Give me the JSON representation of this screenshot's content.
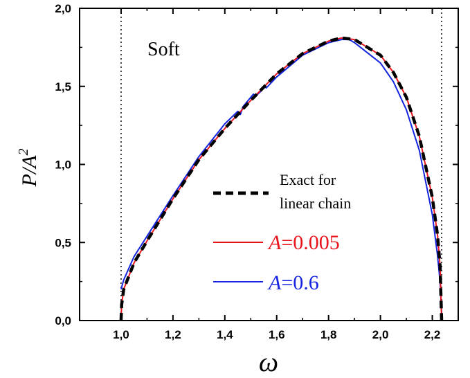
{
  "chart_data": {
    "type": "line",
    "title": "",
    "annotation": "Soft",
    "xlabel": "ω",
    "ylabel": {
      "main": "P/A",
      "superscript": "2"
    },
    "xlim": [
      0.84,
      2.3
    ],
    "ylim": [
      0,
      2.0
    ],
    "x_ticks": [
      1.0,
      1.2,
      1.4,
      1.6,
      1.8,
      2.0,
      2.2
    ],
    "x_tick_labels": [
      "1,0",
      "1,2",
      "1,4",
      "1,6",
      "1,8",
      "2,0",
      "2,2"
    ],
    "y_ticks": [
      0,
      0.5,
      1.0,
      1.5,
      2.0
    ],
    "y_tick_labels": [
      "0,0",
      "0,5",
      "1,0",
      "1,5",
      "2,0"
    ],
    "band_edges": [
      1.0,
      2.236
    ],
    "grid": false,
    "legend_position": "center-right",
    "legend_entries": [
      {
        "key": "exact",
        "label_lines": [
          "Exact for",
          "linear chain"
        ]
      },
      {
        "key": "a005",
        "label_prefix": "A",
        "label_value": "=0.005"
      },
      {
        "key": "a06",
        "label_prefix": "A",
        "label_value": "=0.6"
      }
    ],
    "series": [
      {
        "key": "exact",
        "style": "dashed",
        "color": "#000000",
        "x": [
          1.0,
          1.002,
          1.01,
          1.05,
          1.1,
          1.2,
          1.3,
          1.4,
          1.5,
          1.6,
          1.7,
          1.8,
          1.85,
          1.9,
          2.0,
          2.05,
          2.1,
          2.15,
          2.2,
          2.22,
          2.23,
          2.236
        ],
        "y": [
          0.0,
          0.1,
          0.2,
          0.37,
          0.51,
          0.78,
          1.03,
          1.23,
          1.41,
          1.58,
          1.71,
          1.79,
          1.81,
          1.8,
          1.7,
          1.59,
          1.43,
          1.18,
          0.79,
          0.55,
          0.35,
          0.0
        ]
      },
      {
        "key": "a005",
        "style": "solid",
        "color": "#e8141c",
        "x": [
          1.0,
          1.002,
          1.01,
          1.05,
          1.1,
          1.2,
          1.3,
          1.4,
          1.5,
          1.6,
          1.7,
          1.8,
          1.85,
          1.9,
          2.0,
          2.05,
          2.1,
          2.15,
          2.2,
          2.22,
          2.23,
          2.236
        ],
        "y": [
          0.0,
          0.1,
          0.2,
          0.37,
          0.51,
          0.78,
          1.03,
          1.23,
          1.41,
          1.58,
          1.71,
          1.79,
          1.81,
          1.8,
          1.7,
          1.59,
          1.43,
          1.18,
          0.79,
          0.55,
          0.35,
          0.0
        ]
      },
      {
        "key": "a06",
        "style": "solid",
        "color": "#1424e0",
        "x": [
          1.0,
          1.01,
          1.05,
          1.1,
          1.2,
          1.3,
          1.4,
          1.45,
          1.46,
          1.47,
          1.5,
          1.51,
          1.52,
          1.54,
          1.55,
          1.56,
          1.6,
          1.7,
          1.8,
          1.85,
          1.88,
          1.9,
          2.0,
          2.05,
          2.1,
          2.15,
          2.2,
          2.22,
          2.23,
          2.236
        ],
        "y": [
          0.2,
          0.26,
          0.41,
          0.54,
          0.8,
          1.05,
          1.26,
          1.34,
          1.32,
          1.37,
          1.43,
          1.45,
          1.44,
          1.47,
          1.5,
          1.49,
          1.56,
          1.7,
          1.78,
          1.8,
          1.8,
          1.78,
          1.65,
          1.53,
          1.35,
          1.09,
          0.68,
          0.42,
          0.25,
          0.04
        ]
      }
    ]
  }
}
